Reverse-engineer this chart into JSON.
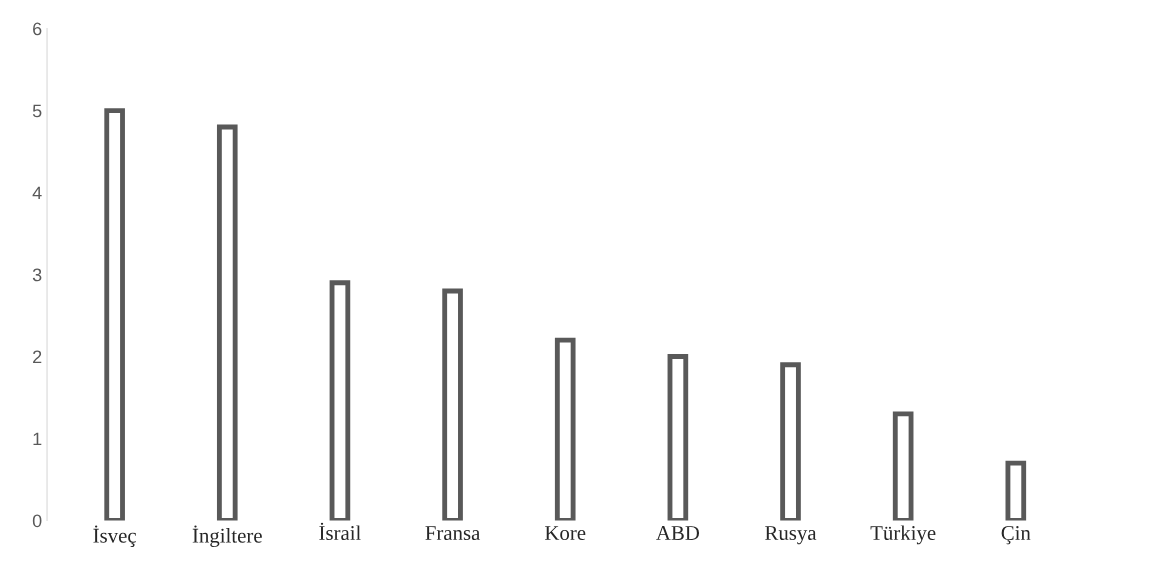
{
  "chart_data": {
    "type": "bar",
    "categories": [
      "İsveç",
      "İngiltere",
      "İsrail",
      "Fransa",
      "Kore",
      "ABD",
      "Rusya",
      "Türkiye",
      "Çin"
    ],
    "values": [
      5.0,
      4.8,
      2.9,
      2.8,
      2.2,
      2.0,
      1.9,
      1.3,
      0.7
    ],
    "color": "#595959",
    "ylim": [
      0,
      6
    ],
    "yticks": [
      0,
      1,
      2,
      3,
      4,
      5,
      6
    ],
    "grid": false,
    "legend": false
  }
}
